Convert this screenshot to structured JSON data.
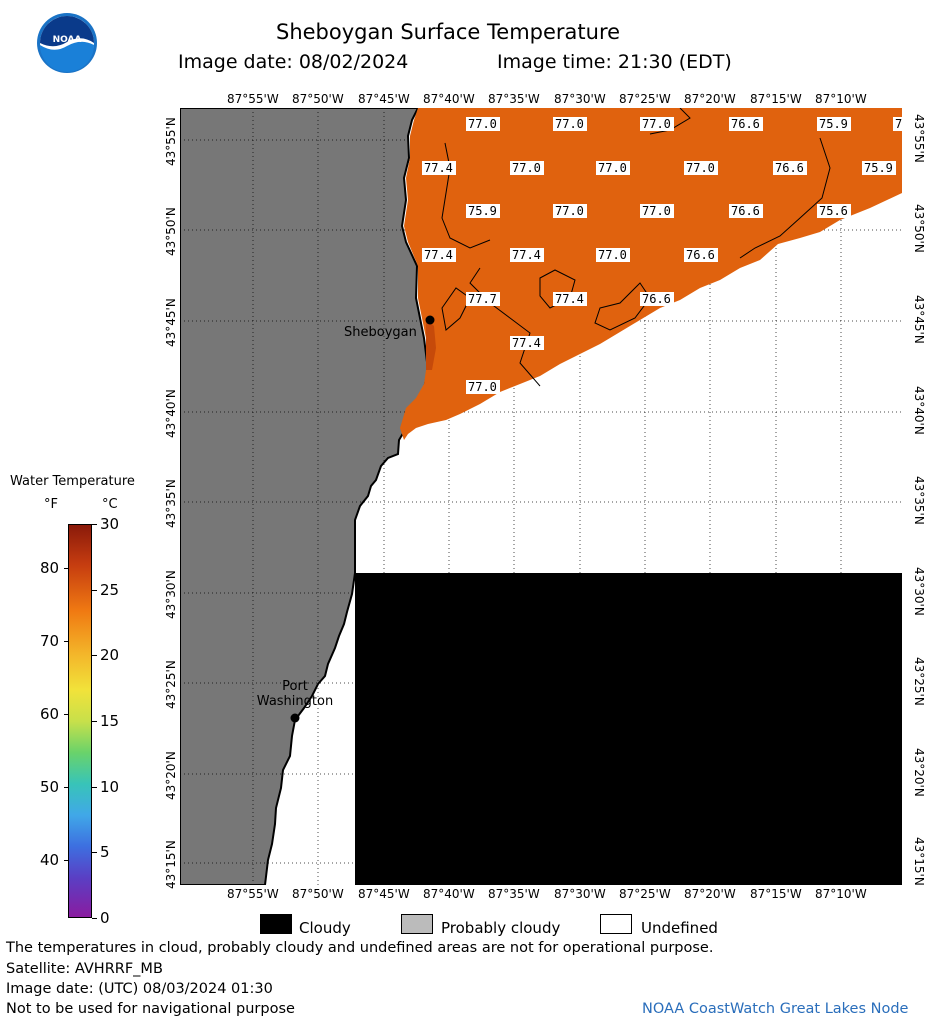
{
  "header": {
    "title": "Sheboygan Surface Temperature",
    "image_date_label": "Image date: 08/02/2024",
    "image_time_label": "Image time: 21:30 (EDT)"
  },
  "logo": {
    "name": "noaa-logo",
    "text": "NOAA"
  },
  "map": {
    "longitude_labels": [
      "87°55'W",
      "87°50'W",
      "87°45'W",
      "87°40'W",
      "87°35'W",
      "87°30'W",
      "87°25'W",
      "87°20'W",
      "87°15'W",
      "87°10'W"
    ],
    "latitude_labels": [
      "43°55'N",
      "43°50'N",
      "43°45'N",
      "43°40'N",
      "43°35'N",
      "43°30'N",
      "43°25'N",
      "43°20'N",
      "43°15'N"
    ],
    "places": [
      {
        "name": "Sheboygan"
      },
      {
        "name": "Port\nWashington"
      }
    ],
    "temperature_labels": [
      "77.0",
      "77.0",
      "77.0",
      "76.6",
      "75.9",
      "7",
      "77.4",
      "77.0",
      "77.0",
      "77.0",
      "76.6",
      "75.9",
      "75.9",
      "77.0",
      "77.0",
      "76.6",
      "75.6",
      "77.4",
      "77.4",
      "77.0",
      "76.6",
      "77.7",
      "77.4",
      "76.6",
      "77.4",
      "77.0"
    ],
    "colors": {
      "land": "#777777",
      "water_warm": "#e0620e",
      "cloudy": "#000000",
      "undefined": "#ffffff"
    }
  },
  "colorbar": {
    "title": "Water Temperature",
    "unit_f": "°F",
    "unit_c": "°C",
    "f_ticks": [
      "80",
      "70",
      "60",
      "50",
      "40"
    ],
    "c_ticks": [
      "30",
      "25",
      "20",
      "15",
      "10",
      "5",
      "0"
    ]
  },
  "legend": {
    "items": [
      {
        "label": "Cloudy",
        "color": "#000000"
      },
      {
        "label": "Probably cloudy",
        "color": "#bbbbbb"
      },
      {
        "label": "Undefined",
        "color": "#ffffff"
      }
    ]
  },
  "footer": {
    "disclaimer": "The temperatures in cloud, probably cloudy and undefined areas are not for operational purpose.",
    "satellite": "Satellite: AVHRRF_MB",
    "utc_date": "Image date: (UTC) 08/03/2024  01:30",
    "navigation": "Not to be used for navigational purpose",
    "credit": "NOAA CoastWatch Great Lakes Node"
  }
}
